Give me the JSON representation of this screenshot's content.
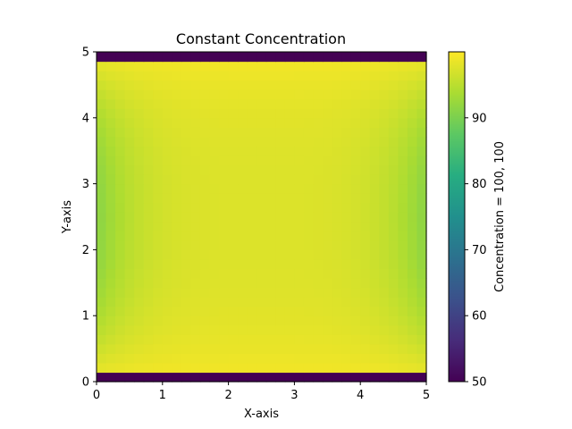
{
  "chart_data": {
    "type": "heatmap",
    "title": "Constant Concentration",
    "xlabel": "X-axis",
    "ylabel": "Y-axis",
    "xlim": [
      0,
      5
    ],
    "ylim": [
      0,
      5
    ],
    "xticks": [
      "0",
      "1",
      "2",
      "3",
      "4",
      "5"
    ],
    "yticks": [
      "0",
      "1",
      "2",
      "3",
      "4",
      "5"
    ],
    "grid_size": [
      35,
      35
    ],
    "colormap": "viridis",
    "colorbar": {
      "label": "Concentration = 100, 100",
      "range": [
        50,
        100
      ],
      "ticks": [
        "50",
        "60",
        "70",
        "80",
        "90"
      ]
    },
    "field": {
      "description_values": {
        "top_and_bottom_boundary_rows": 50,
        "center_value": 97.5,
        "left_right_edge_midheight": 91,
        "near_top_bottom_interior": 99.5
      }
    },
    "grid": false
  }
}
